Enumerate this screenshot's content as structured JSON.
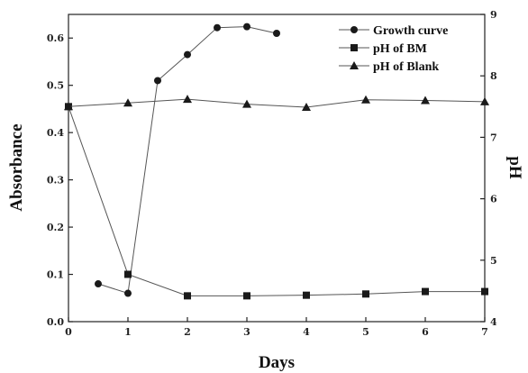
{
  "chart_data": {
    "type": "line",
    "title": "",
    "xlabel": "Days",
    "ylabel_left": "Absorbance",
    "ylabel_right": "pH",
    "xlim": [
      0,
      7
    ],
    "ylim_left": [
      0.0,
      0.65
    ],
    "ylim_right": [
      4,
      9
    ],
    "x_ticks": [
      "0",
      "1",
      "2",
      "3",
      "4",
      "5",
      "6",
      "7"
    ],
    "y_left_ticks": [
      "0.0",
      "0.1",
      "0.2",
      "0.3",
      "0.4",
      "0.5",
      "0.6"
    ],
    "y_right_ticks": [
      "4",
      "5",
      "6",
      "7",
      "8",
      "9"
    ],
    "grid": false,
    "legend_position": "top-right",
    "series": [
      {
        "name": "Growth curve",
        "axis": "left",
        "marker": "circle",
        "color": "#1a1a1a",
        "points": [
          {
            "x": 0.5,
            "y": 0.08
          },
          {
            "x": 1,
            "y": 0.06
          },
          {
            "x": 1.5,
            "y": 0.51
          },
          {
            "x": 2,
            "y": 0.565
          },
          {
            "x": 2.5,
            "y": 0.622
          },
          {
            "x": 3,
            "y": 0.624
          },
          {
            "x": 3.5,
            "y": 0.61
          }
        ]
      },
      {
        "name": "pH of BM",
        "axis": "right",
        "marker": "square",
        "color": "#1a1a1a",
        "points": [
          {
            "x": 0,
            "y": 7.5
          },
          {
            "x": 1,
            "y": 4.77
          },
          {
            "x": 2,
            "y": 4.42
          },
          {
            "x": 3,
            "y": 4.42
          },
          {
            "x": 4,
            "y": 4.43
          },
          {
            "x": 5,
            "y": 4.45
          },
          {
            "x": 6,
            "y": 4.49
          },
          {
            "x": 7,
            "y": 4.49
          }
        ]
      },
      {
        "name": "pH of Blank",
        "axis": "right",
        "marker": "triangle",
        "color": "#1a1a1a",
        "points": [
          {
            "x": 0,
            "y": 7.5
          },
          {
            "x": 1,
            "y": 7.56
          },
          {
            "x": 2,
            "y": 7.62
          },
          {
            "x": 3,
            "y": 7.54
          },
          {
            "x": 4,
            "y": 7.49
          },
          {
            "x": 5,
            "y": 7.61
          },
          {
            "x": 6,
            "y": 7.6
          },
          {
            "x": 7,
            "y": 7.58
          }
        ]
      }
    ]
  }
}
